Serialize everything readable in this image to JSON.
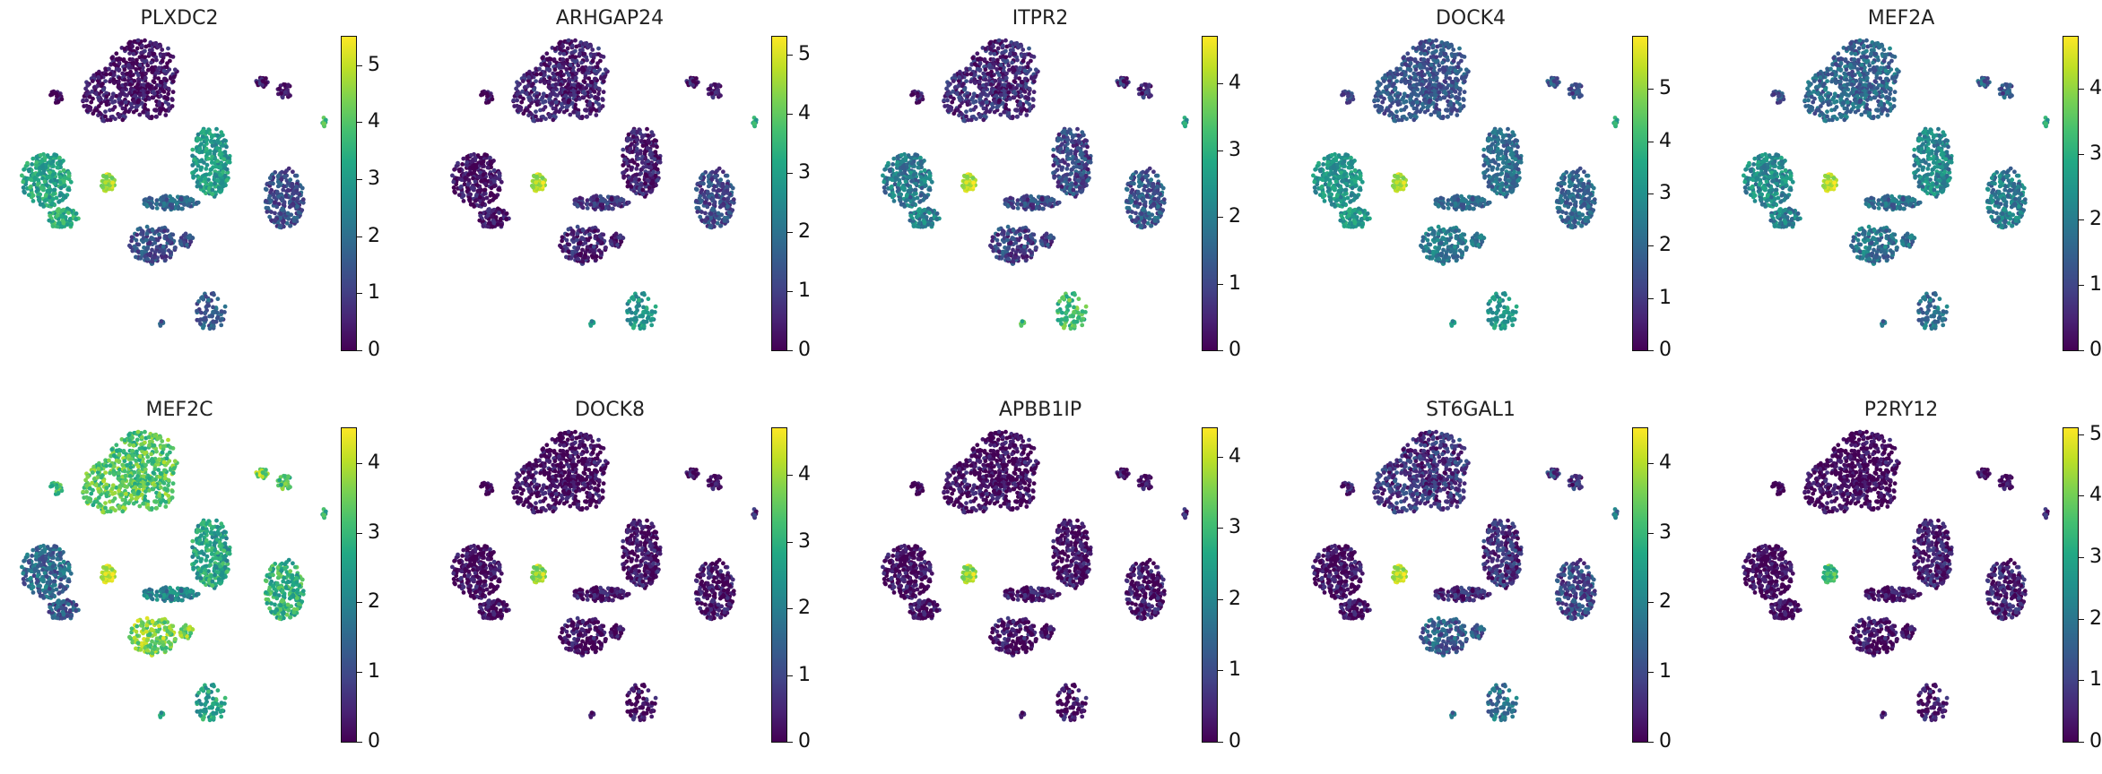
{
  "figure": "UMAP feature plots colored by gene expression (viridis colormap)",
  "colormap": [
    "#440154",
    "#482475",
    "#414487",
    "#355f8d",
    "#2a788e",
    "#21918c",
    "#22a884",
    "#44bf70",
    "#7ad151",
    "#bddf26",
    "#fde725"
  ],
  "chart_data": [
    {
      "type": "scatter",
      "title": "PLXDC2",
      "ylim": [
        0,
        5.5
      ],
      "colorbar_ticks": [
        0,
        1,
        2,
        3,
        4,
        5
      ],
      "cluster_levels": {
        "top_large": 0.3,
        "right_small_a": 0.4,
        "right_small_b": 0.2,
        "left_large": 3.2,
        "left_lower": 3.4,
        "center_bright": 4.8,
        "center_band": 1.8,
        "center_right": 3.0,
        "right_ring": 1.3,
        "bottom_mid": 1.3,
        "bottom_small": 1.6,
        "far_right_tiny": 3.6
      }
    },
    {
      "type": "scatter",
      "title": "ARHGAP24",
      "ylim": [
        0,
        5.3
      ],
      "colorbar_ticks": [
        0,
        1,
        2,
        3,
        4,
        5
      ],
      "cluster_levels": {
        "top_large": 0.5,
        "right_small_a": 0.4,
        "right_small_b": 0.3,
        "left_large": 0.2,
        "left_lower": 0.2,
        "center_bright": 4.8,
        "center_band": 0.8,
        "center_right": 0.4,
        "right_ring": 1.2,
        "bottom_mid": 0.5,
        "bottom_small": 2.8,
        "far_right_tiny": 3.0
      }
    },
    {
      "type": "scatter",
      "title": "ITPR2",
      "ylim": [
        0,
        4.7
      ],
      "colorbar_ticks": [
        0,
        1,
        2,
        3,
        4
      ],
      "cluster_levels": {
        "top_large": 0.6,
        "right_small_a": 0.7,
        "right_small_b": 0.5,
        "left_large": 1.9,
        "left_lower": 2.0,
        "center_bright": 4.4,
        "center_band": 1.0,
        "center_right": 1.0,
        "right_ring": 1.3,
        "bottom_mid": 0.9,
        "bottom_small": 3.3,
        "far_right_tiny": 2.4
      }
    },
    {
      "type": "scatter",
      "title": "DOCK4",
      "ylim": [
        0,
        6.0
      ],
      "colorbar_ticks": [
        0,
        1,
        2,
        3,
        4,
        5
      ],
      "cluster_levels": {
        "top_large": 1.6,
        "right_small_a": 1.7,
        "right_small_b": 1.4,
        "left_large": 3.1,
        "left_lower": 3.2,
        "center_bright": 5.4,
        "center_band": 2.0,
        "center_right": 2.1,
        "right_ring": 2.0,
        "bottom_mid": 2.4,
        "bottom_small": 3.2,
        "far_right_tiny": 3.4
      }
    },
    {
      "type": "scatter",
      "title": "MEF2A",
      "ylim": [
        0,
        4.8
      ],
      "colorbar_ticks": [
        0,
        1,
        2,
        3,
        4
      ],
      "cluster_levels": {
        "top_large": 1.6,
        "right_small_a": 1.5,
        "right_small_b": 1.3,
        "left_large": 2.3,
        "left_lower": 2.0,
        "center_bright": 4.5,
        "center_band": 1.7,
        "center_right": 2.2,
        "right_ring": 2.0,
        "bottom_mid": 1.8,
        "bottom_small": 1.8,
        "far_right_tiny": 2.6
      }
    },
    {
      "type": "scatter",
      "title": "MEF2C",
      "ylim": [
        0,
        4.5
      ],
      "colorbar_ticks": [
        0,
        1,
        2,
        3,
        4
      ],
      "cluster_levels": {
        "top_large": 3.3,
        "right_small_a": 3.7,
        "right_small_b": 3.2,
        "left_large": 1.5,
        "left_lower": 1.2,
        "center_bright": 4.3,
        "center_band": 2.0,
        "center_right": 2.6,
        "right_ring": 2.9,
        "bottom_mid": 3.6,
        "bottom_small": 2.6,
        "far_right_tiny": 2.6
      }
    },
    {
      "type": "scatter",
      "title": "DOCK8",
      "ylim": [
        0,
        4.7
      ],
      "colorbar_ticks": [
        0,
        1,
        2,
        3,
        4
      ],
      "cluster_levels": {
        "top_large": 0.1,
        "right_small_a": 0.1,
        "right_small_b": 0.1,
        "left_large": 0.05,
        "left_lower": 0.05,
        "center_bright": 4.1,
        "center_band": 0.2,
        "center_right": 0.15,
        "right_ring": 0.2,
        "bottom_mid": 0.1,
        "bottom_small": 0.2,
        "far_right_tiny": 0.3
      }
    },
    {
      "type": "scatter",
      "title": "APBB1IP",
      "ylim": [
        0,
        4.4
      ],
      "colorbar_ticks": [
        0,
        1,
        2,
        3,
        4
      ],
      "cluster_levels": {
        "top_large": 0.1,
        "right_small_a": 0.1,
        "right_small_b": 0.1,
        "left_large": 0.05,
        "left_lower": 0.05,
        "center_bright": 3.9,
        "center_band": 0.2,
        "center_right": 0.1,
        "right_ring": 0.2,
        "bottom_mid": 0.1,
        "bottom_small": 0.2,
        "far_right_tiny": 0.2
      }
    },
    {
      "type": "scatter",
      "title": "ST6GAL1",
      "ylim": [
        0,
        4.5
      ],
      "colorbar_ticks": [
        0,
        1,
        2,
        3,
        4
      ],
      "cluster_levels": {
        "top_large": 0.7,
        "right_small_a": 0.9,
        "right_small_b": 0.6,
        "left_large": 0.1,
        "left_lower": 0.1,
        "center_bright": 4.2,
        "center_band": 0.5,
        "center_right": 0.6,
        "right_ring": 1.0,
        "bottom_mid": 1.3,
        "bottom_small": 1.7,
        "far_right_tiny": 1.5
      }
    },
    {
      "type": "scatter",
      "title": "P2RY12",
      "ylim": [
        0,
        5.1
      ],
      "colorbar_ticks": [
        0,
        1,
        2,
        3,
        4,
        5
      ],
      "cluster_levels": {
        "top_large": 0.1,
        "right_small_a": 0.1,
        "right_small_b": 0.1,
        "left_large": 0.05,
        "left_lower": 0.05,
        "center_bright": 3.6,
        "center_band": 0.2,
        "center_right": 0.4,
        "right_ring": 0.5,
        "bottom_mid": 0.2,
        "bottom_small": 0.4,
        "far_right_tiny": 0.3
      }
    }
  ]
}
